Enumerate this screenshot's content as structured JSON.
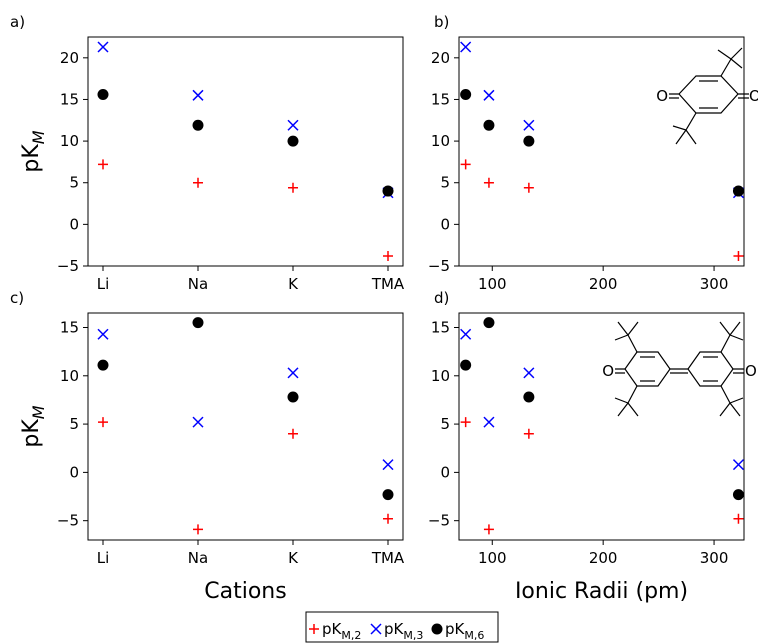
{
  "chart_data": [
    {
      "panel_label": "a)",
      "type": "scatter",
      "x_type": "categorical",
      "categories": [
        "Li",
        "Na",
        "K",
        "TMA"
      ],
      "ylabel": "pK",
      "ylabel_sub": "M",
      "ylim": [
        -5,
        22.5
      ],
      "yticks": [
        -5,
        0,
        5,
        10,
        15,
        20
      ],
      "series": [
        {
          "key": "m2",
          "values": [
            7.2,
            5.0,
            4.4,
            -3.8
          ]
        },
        {
          "key": "m3",
          "values": [
            21.3,
            15.5,
            11.9,
            3.8
          ]
        },
        {
          "key": "m6",
          "values": [
            15.6,
            11.9,
            10.0,
            4.0
          ]
        }
      ]
    },
    {
      "panel_label": "b)",
      "type": "scatter",
      "x_type": "numeric",
      "x": [
        76,
        97,
        133,
        322
      ],
      "xlim": [
        70,
        327
      ],
      "xticks": [
        100,
        200,
        300
      ],
      "ylim": [
        -5,
        22.5
      ],
      "yticks": [
        -5,
        0,
        5,
        10,
        15,
        20
      ],
      "series": [
        {
          "key": "m2",
          "values": [
            7.2,
            5.0,
            4.4,
            -3.8
          ]
        },
        {
          "key": "m3",
          "values": [
            21.3,
            15.5,
            11.9,
            3.8
          ]
        },
        {
          "key": "m6",
          "values": [
            15.6,
            11.9,
            10.0,
            4.0
          ]
        }
      ],
      "inset_labels": [
        "O",
        "O"
      ]
    },
    {
      "panel_label": "c)",
      "type": "scatter",
      "x_type": "categorical",
      "categories": [
        "Li",
        "Na",
        "K",
        "TMA"
      ],
      "xlabel": "Cations",
      "ylabel": "pK",
      "ylabel_sub": "M",
      "ylim": [
        -7,
        16.5
      ],
      "yticks": [
        -5,
        0,
        5,
        10,
        15
      ],
      "series": [
        {
          "key": "m2",
          "values": [
            5.2,
            -5.9,
            4.0,
            -4.8
          ]
        },
        {
          "key": "m3",
          "values": [
            14.3,
            5.2,
            10.3,
            0.8
          ]
        },
        {
          "key": "m6",
          "values": [
            11.1,
            15.5,
            7.8,
            -2.3
          ]
        }
      ]
    },
    {
      "panel_label": "d)",
      "type": "scatter",
      "x_type": "numeric",
      "x": [
        76,
        97,
        133,
        322
      ],
      "xlim": [
        70,
        327
      ],
      "xticks": [
        100,
        200,
        300
      ],
      "xlabel": "Ionic Radii (pm)",
      "ylim": [
        -7,
        16.5
      ],
      "yticks": [
        -5,
        0,
        5,
        10,
        15
      ],
      "series": [
        {
          "key": "m2",
          "values": [
            5.2,
            -5.9,
            4.0,
            -4.8
          ]
        },
        {
          "key": "m3",
          "values": [
            14.3,
            5.2,
            10.3,
            0.8
          ]
        },
        {
          "key": "m6",
          "values": [
            11.1,
            15.5,
            7.8,
            -2.3
          ]
        }
      ],
      "inset_labels": [
        "O",
        "O"
      ]
    }
  ],
  "legend": [
    {
      "key": "m2",
      "marker": "plus",
      "color": "#ff0000",
      "label": "pK",
      "sub": "M,2"
    },
    {
      "key": "m3",
      "marker": "x",
      "color": "#0000ff",
      "label": "pK",
      "sub": "M,3"
    },
    {
      "key": "m6",
      "marker": "circle",
      "color": "#000000",
      "label": "pK",
      "sub": "M,6"
    }
  ],
  "colors": {
    "m2": "#ff0000",
    "m3": "#0000ff",
    "m6": "#000000"
  }
}
